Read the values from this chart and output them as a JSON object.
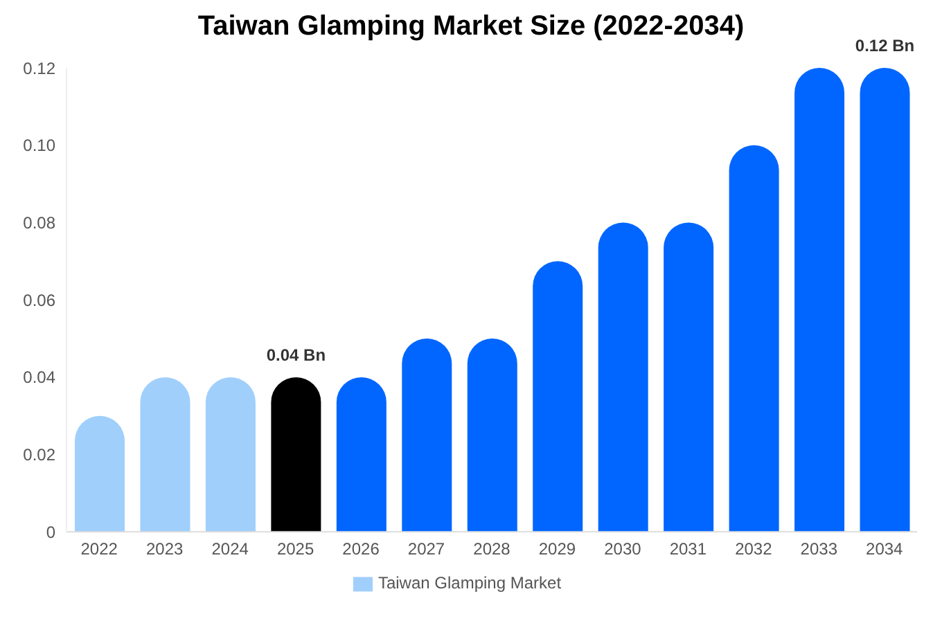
{
  "chart_data": {
    "type": "bar",
    "title": "Taiwan Glamping Market Size (2022-2034)",
    "categories": [
      "2022",
      "2023",
      "2024",
      "2025",
      "2026",
      "2027",
      "2028",
      "2029",
      "2030",
      "2031",
      "2032",
      "2033",
      "2034"
    ],
    "series": [
      {
        "name": "Taiwan Glamping Market",
        "color": "#a0cffc",
        "colors": [
          "#a0cffc",
          "#a0cffc",
          "#a0cffc",
          "#000000",
          "#0066ff",
          "#0066ff",
          "#0066ff",
          "#0066ff",
          "#0066ff",
          "#0066ff",
          "#0066ff",
          "#0066ff",
          "#0066ff"
        ],
        "values": [
          0.03,
          0.04,
          0.04,
          0.04,
          0.04,
          0.05,
          0.05,
          0.07,
          0.08,
          0.08,
          0.1,
          0.12,
          0.12
        ],
        "value_labels": [
          null,
          null,
          null,
          "0.04 Bn",
          null,
          null,
          null,
          null,
          null,
          null,
          null,
          null,
          "0.12 Bn"
        ]
      }
    ],
    "ylim": [
      0,
      0.12
    ],
    "yticks": [
      0,
      0.02,
      0.04,
      0.06,
      0.08,
      {
        "value": 0.1,
        "label": "0.10"
      },
      0.12
    ],
    "legend": "bottom"
  }
}
